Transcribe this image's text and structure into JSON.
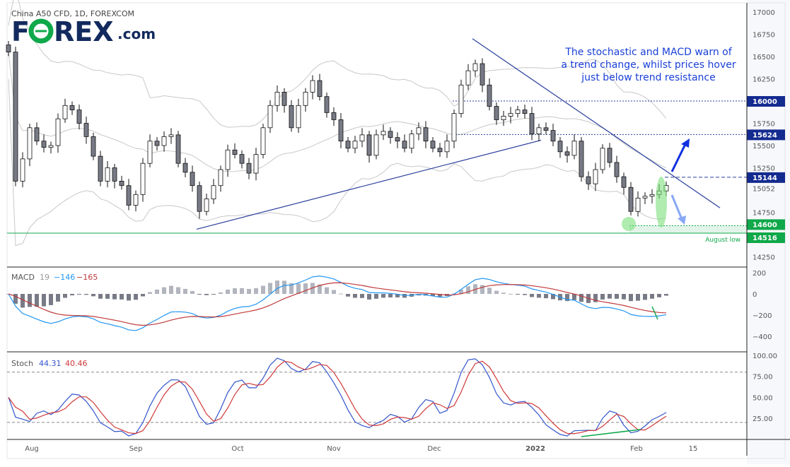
{
  "header": {
    "title": "China A50 CFD, 1D, FOREXCOM",
    "logo_text": "FOREX.com"
  },
  "annotation": "The stochastic and MACD warn of a trend change, whilst prices hover just below trend resistance",
  "annotation_lines": [
    "The stochastic and MACD warn of",
    "a trend change, whilst prices hover",
    "just below trend resistance"
  ],
  "august_low_label": "August low",
  "macd_legend": {
    "name": "MACD",
    "hist": "19",
    "macd": "−146",
    "signal": "−165"
  },
  "stoch_legend": {
    "name": "Stoch",
    "k": "44.31",
    "d": "40.46"
  },
  "colors": {
    "up": "#ffffff",
    "down": "#787b86",
    "band": "#c8c8c8",
    "trend": "#2a3f9d",
    "tag_blue": "#132a8f",
    "tag_green": "#0fa84a",
    "macd": "#2196f3",
    "signal": "#c0393b",
    "stoch_k": "#3355cc",
    "stoch_d": "#d03838",
    "green": "#0fa84a",
    "logo_navy": "#132a5e",
    "text_blue": "#1a3fd8"
  },
  "chart_data": {
    "type": "candlestick",
    "title": "China A50 CFD, 1D, FOREXCOM",
    "x_tick_labels": [
      "Aug",
      "Sep",
      "Oct",
      "Nov",
      "Dec",
      "2022",
      "Feb",
      "15"
    ],
    "price_axis": {
      "ticks": [
        17000,
        16750,
        16500,
        16250,
        15750,
        15500,
        15250,
        14750,
        14250
      ],
      "ylim": [
        14100,
        17100
      ]
    },
    "closes": [
      16550,
      15100,
      15350,
      15700,
      15550,
      15480,
      15500,
      15800,
      15950,
      15900,
      15750,
      15600,
      15380,
      15100,
      15250,
      15100,
      15050,
      14830,
      14950,
      15300,
      15550,
      15500,
      15600,
      15620,
      15300,
      15200,
      15050,
      14760,
      14900,
      15050,
      15230,
      15450,
      15400,
      15300,
      15190,
      15400,
      15700,
      15950,
      16100,
      15950,
      15700,
      15950,
      16100,
      16230,
      16050,
      15870,
      15790,
      15550,
      15470,
      15550,
      15620,
      15390,
      15620,
      15660,
      15590,
      15550,
      15470,
      15630,
      15700,
      15550,
      15470,
      15430,
      15550,
      15860,
      16180,
      16340,
      16420,
      16180,
      15940,
      15790,
      15830,
      15860,
      15900,
      15860,
      15630,
      15700,
      15670,
      15550,
      15430,
      15390,
      15550,
      15150,
      15070,
      15230,
      15470,
      15310,
      15150,
      15030,
      14760,
      14910,
      14930,
      14950,
      14990,
      15052
    ],
    "levels": [
      {
        "value": 16000,
        "label": "16000",
        "style": "dotted",
        "color": "tag_blue"
      },
      {
        "value": 15624,
        "label": "15624",
        "style": "dotted",
        "color": "tag_blue"
      },
      {
        "value": 15144,
        "label": "15144",
        "style": "dashed",
        "color": "tag_blue"
      },
      {
        "value": 14600,
        "label": "14600",
        "style": "dotted-green",
        "color": "tag_green"
      },
      {
        "value": 14516,
        "label": "14516",
        "style": "solid-green",
        "color": "tag_green"
      }
    ],
    "last_price": {
      "value": 15052,
      "label": "15052"
    },
    "trendlines": [
      {
        "name": "resistance",
        "from": [
          65.6,
          16700
        ],
        "to": [
          100.6,
          14800
        ]
      },
      {
        "name": "support",
        "from": [
          26.6,
          14560
        ],
        "to": [
          75.3,
          15560
        ]
      }
    ],
    "macd": {
      "ticks": [
        200,
        0,
        -200,
        -400
      ],
      "ylim": [
        -480,
        240
      ]
    },
    "stoch": {
      "ticks": [
        "100.00",
        "75.00",
        "50.00",
        "25.00"
      ],
      "ylim": [
        0,
        105
      ],
      "bands": [
        80,
        20
      ]
    }
  }
}
